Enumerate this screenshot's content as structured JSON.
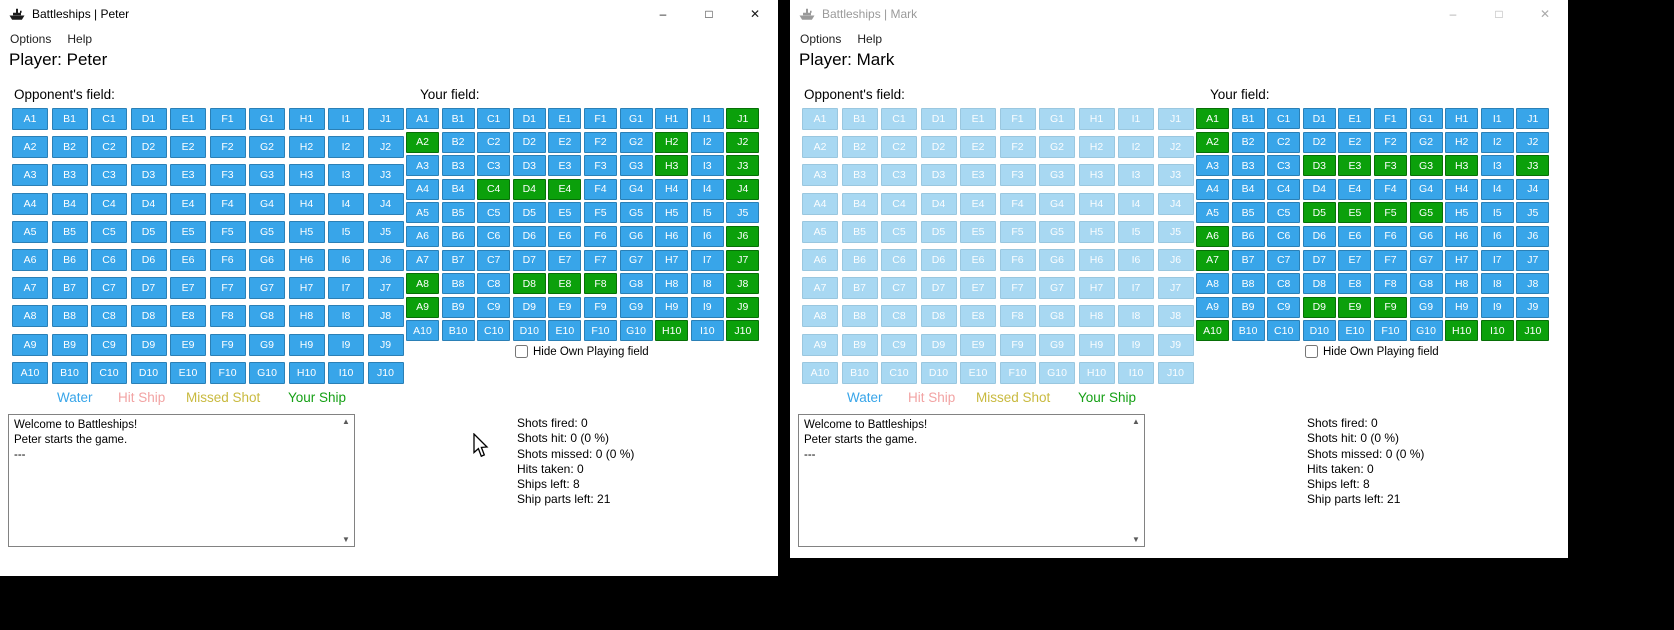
{
  "desktop_background": "#000000",
  "chrome": {
    "minimize_glyph": "–",
    "maximize_glyph": "□",
    "close_glyph": "✕"
  },
  "colors": {
    "water": "#38A5E9",
    "ship": "#0BA00B",
    "water_disabled": "#A8D8F2",
    "cell_text": "#FFFFFF"
  },
  "grid": {
    "columns": [
      "A",
      "B",
      "C",
      "D",
      "E",
      "F",
      "G",
      "H",
      "I",
      "J"
    ],
    "rows": [
      1,
      2,
      3,
      4,
      5,
      6,
      7,
      8,
      9,
      10
    ]
  },
  "windows": [
    {
      "title": "Battleships | Peter",
      "active": true,
      "menu": [
        "Options",
        "Help"
      ],
      "player_label": "Player: Peter",
      "opponent_label": "Opponent's field:",
      "your_label": "Your field:",
      "opponent_field_disabled": false,
      "your_ships": [
        "J1",
        "A2",
        "H2",
        "J2",
        "H3",
        "J3",
        "C4",
        "D4",
        "E4",
        "J4",
        "J6",
        "J7",
        "A8",
        "D8",
        "E8",
        "F8",
        "J8",
        "A9",
        "J9",
        "H10",
        "J10"
      ],
      "hide_label": "Hide Own Playing field",
      "hide_checked": false,
      "legend": [
        {
          "label": "Water",
          "color": "#38A5E9"
        },
        {
          "label": "Hit Ship",
          "color": "#F2A3A3"
        },
        {
          "label": "Missed Shot",
          "color": "#C9BA3F"
        },
        {
          "label": "Your Ship",
          "color": "#15A015"
        }
      ],
      "log_lines": [
        "Welcome to Battleships!",
        "Peter starts the game.",
        "---"
      ],
      "stats": [
        "Shots fired: 0",
        "Shots hit: 0 (0 %)",
        "Shots missed: 0 (0 %)",
        "Hits taken: 0",
        "Ships left: 8",
        "Ship parts left: 21"
      ]
    },
    {
      "title": "Battleships | Mark",
      "active": false,
      "menu": [
        "Options",
        "Help"
      ],
      "player_label": "Player: Mark",
      "opponent_label": "Opponent's field:",
      "your_label": "Your field:",
      "opponent_field_disabled": true,
      "your_ships": [
        "A1",
        "A2",
        "D3",
        "E3",
        "F3",
        "G3",
        "H3",
        "J3",
        "D5",
        "E5",
        "F5",
        "G5",
        "A6",
        "A7",
        "D9",
        "E9",
        "F9",
        "A10",
        "H10",
        "I10",
        "J10"
      ],
      "hide_label": "Hide Own Playing field",
      "hide_checked": false,
      "legend": [
        {
          "label": "Water",
          "color": "#38A5E9"
        },
        {
          "label": "Hit Ship",
          "color": "#F2A3A3"
        },
        {
          "label": "Missed Shot",
          "color": "#C9BA3F"
        },
        {
          "label": "Your Ship",
          "color": "#15A015"
        }
      ],
      "log_lines": [
        "Welcome to Battleships!",
        "Peter starts the game.",
        "---"
      ],
      "stats": [
        "Shots fired: 0",
        "Shots hit: 0 (0 %)",
        "Shots missed: 0 (0 %)",
        "Hits taken: 0",
        "Ships left: 8",
        "Ship parts left: 21"
      ]
    }
  ]
}
